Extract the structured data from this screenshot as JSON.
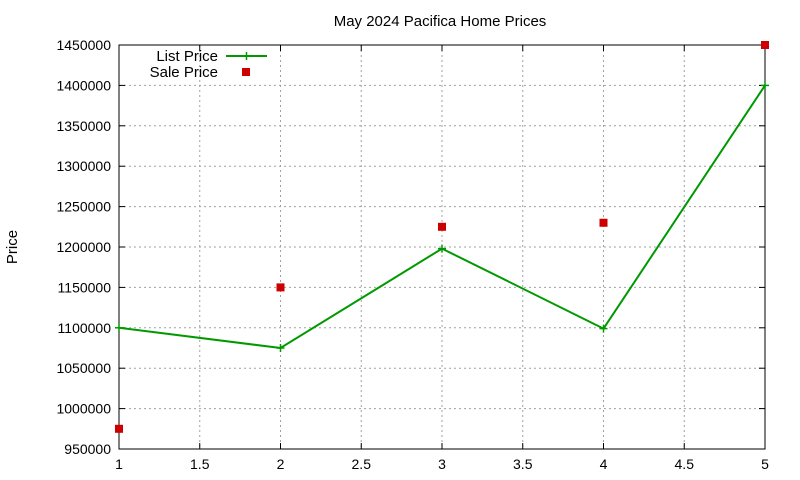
{
  "chart_data": {
    "type": "line",
    "title": "May 2024 Pacifica Home Prices",
    "xlabel": "",
    "ylabel": "Price",
    "xlim": [
      1,
      5
    ],
    "ylim": [
      950000,
      1450000
    ],
    "x_ticks": [
      "1",
      "1.5",
      "2",
      "2.5",
      "3",
      "3.5",
      "4",
      "4.5",
      "5"
    ],
    "y_ticks": [
      "950000",
      "1000000",
      "1050000",
      "1100000",
      "1150000",
      "1200000",
      "1250000",
      "1300000",
      "1350000",
      "1400000",
      "1450000"
    ],
    "grid": true,
    "legend_position": "top-left",
    "series": [
      {
        "name": "List Price",
        "style": "line-with-plus-markers",
        "color": "#009900",
        "x": [
          1,
          2,
          3,
          4,
          5
        ],
        "y": [
          1100000,
          1075000,
          1198000,
          1099000,
          1400000
        ]
      },
      {
        "name": "Sale Price",
        "style": "square-markers",
        "color": "#cc0000",
        "x": [
          1,
          2,
          3,
          4,
          5
        ],
        "y": [
          975000,
          1150000,
          1225000,
          1230000,
          1450000
        ]
      }
    ]
  }
}
